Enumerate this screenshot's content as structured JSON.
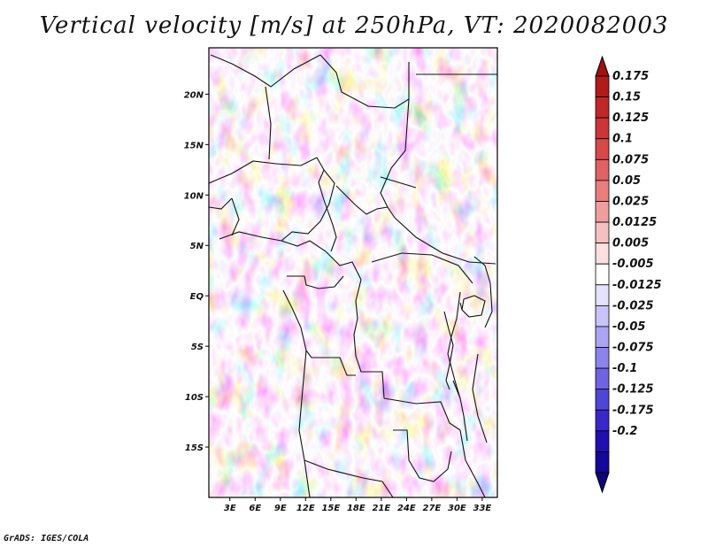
{
  "title": "Vertical velocity [m/s] at 250hPa, VT: 2020082003",
  "credit": "GrADS: IGES/COLA",
  "map": {
    "lat_labels": [
      "20N",
      "15N",
      "10N",
      "5N",
      "EQ",
      "5S",
      "10S",
      "15S"
    ],
    "lon_labels": [
      "3E",
      "6E",
      "9E",
      "12E",
      "15E",
      "18E",
      "21E",
      "24E",
      "27E",
      "30E",
      "33E"
    ],
    "lat_values": [
      20,
      15,
      10,
      5,
      0,
      -5,
      -10,
      -15
    ],
    "lon_values": [
      3,
      6,
      9,
      12,
      15,
      18,
      21,
      24,
      27,
      30,
      33
    ],
    "lon_range": [
      0.5,
      34.8
    ],
    "lat_range": [
      -20,
      24.6
    ]
  },
  "colorbar": {
    "labels": [
      "0.175",
      "0.15",
      "0.125",
      "0.1",
      "0.075",
      "0.05",
      "0.025",
      "0.0125",
      "0.005",
      "-0.005",
      "-0.0125",
      "-0.025",
      "-0.05",
      "-0.075",
      "-0.1",
      "-0.125",
      "-0.175",
      "-0.2"
    ],
    "colors": [
      "#b01c1c",
      "#c02828",
      "#cc3636",
      "#d84848",
      "#e06262",
      "#e87e7e",
      "#ef9e9e",
      "#f5c0c0",
      "#fae0e0",
      "#ffffff",
      "#e4e2fc",
      "#c8c4f8",
      "#aaa4f2",
      "#8c84ec",
      "#6e64e2",
      "#5046d6",
      "#3828c8",
      "#2010b0",
      "#14089a"
    ],
    "end_colors": {
      "top": "#a01010",
      "bottom": "#10067a"
    }
  }
}
